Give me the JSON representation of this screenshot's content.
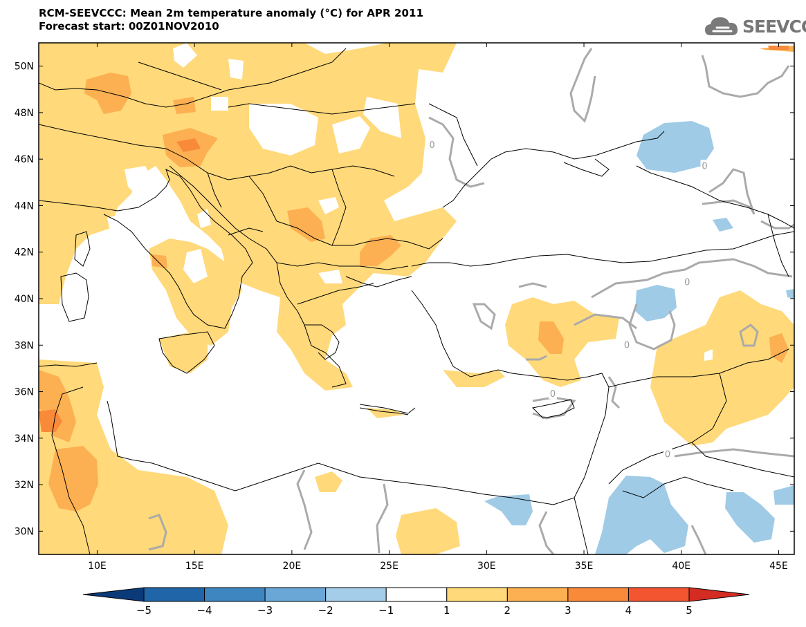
{
  "header": {
    "title": "RCM-SEEVCCC: Mean 2m temperature anomaly (°C) for APR 2011",
    "subtitle": "Forecast start: 00Z01NOV2010",
    "logo_text": "SEEVCCC"
  },
  "map": {
    "lon_range": [
      7,
      45.8
    ],
    "lat_range": [
      29,
      51
    ],
    "lon_ticks": [
      {
        "v": 10,
        "label": "10E"
      },
      {
        "v": 15,
        "label": "15E"
      },
      {
        "v": 20,
        "label": "20E"
      },
      {
        "v": 25,
        "label": "25E"
      },
      {
        "v": 30,
        "label": "30E"
      },
      {
        "v": 35,
        "label": "35E"
      },
      {
        "v": 40,
        "label": "40E"
      },
      {
        "v": 45,
        "label": "45E"
      }
    ],
    "lat_ticks": [
      {
        "v": 30,
        "label": "30N"
      },
      {
        "v": 32,
        "label": "32N"
      },
      {
        "v": 34,
        "label": "34N"
      },
      {
        "v": 36,
        "label": "36N"
      },
      {
        "v": 38,
        "label": "38N"
      },
      {
        "v": 40,
        "label": "40N"
      },
      {
        "v": 42,
        "label": "42N"
      },
      {
        "v": 44,
        "label": "44N"
      },
      {
        "v": 46,
        "label": "46N"
      },
      {
        "v": 48,
        "label": "48N"
      },
      {
        "v": 50,
        "label": "50N"
      }
    ],
    "contour_labels": [
      {
        "text": "0",
        "lon": 27.2,
        "lat": 46.6
      },
      {
        "text": "0",
        "lon": 41.2,
        "lat": 45.7
      },
      {
        "text": "0",
        "lon": 40.3,
        "lat": 40.7
      },
      {
        "text": "0",
        "lon": 37.2,
        "lat": 38.0
      },
      {
        "text": "0",
        "lon": 33.4,
        "lat": 35.9
      },
      {
        "text": "0",
        "lon": 39.3,
        "lat": 33.3
      }
    ],
    "colors": {
      "anom_1_2": "#ffd97a",
      "anom_2_3": "#fcb052",
      "anom_3_4": "#f98a3a",
      "anom_neg1_neg2": "#9fcbe6",
      "contour": "#aaaaaa",
      "borders": "#000000"
    }
  },
  "colorbar": {
    "labels": [
      "−5",
      "−4",
      "−3",
      "−2",
      "−1",
      "1",
      "2",
      "3",
      "4",
      "5"
    ],
    "colors": [
      "#0b3a78",
      "#1f65a8",
      "#3e86c0",
      "#6aa7d6",
      "#a4cde9",
      "#ffffff",
      "#ffd97a",
      "#fcb052",
      "#f98a3a",
      "#f35530",
      "#d42c22"
    ]
  }
}
